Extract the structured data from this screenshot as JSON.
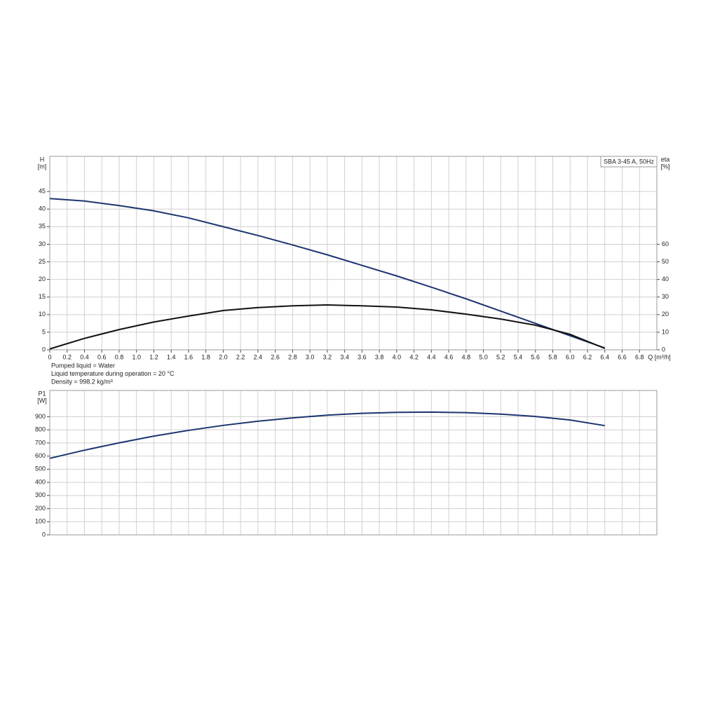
{
  "chart_data": [
    {
      "type": "line",
      "title": "SBA 3-45 A, 50Hz",
      "ylabel": "H",
      "yunit": "[m]",
      "y2label": "eta",
      "y2unit": "[%]",
      "xlabel": "Q [m³/h]",
      "notes": [
        "Pumped liquid = Water",
        "Liquid temperature during operation = 20 °C",
        "Density = 998.2 kg/m³"
      ],
      "x": [
        0,
        0.4,
        0.8,
        1.2,
        1.6,
        2.0,
        2.4,
        2.8,
        3.2,
        3.6,
        4.0,
        4.4,
        4.8,
        5.2,
        5.6,
        6.0,
        6.4
      ],
      "series": [
        {
          "color": "#1c3570",
          "axis": "y",
          "values": [
            43,
            42.3,
            41,
            39.5,
            37.5,
            35,
            32.5,
            29.8,
            27,
            24,
            21,
            17.8,
            14.5,
            11,
            7.5,
            4,
            0.5
          ]
        },
        {
          "color": "#111111",
          "axis": "y2",
          "values": [
            0.5,
            6.5,
            11.5,
            15.8,
            19.2,
            22.3,
            24,
            25,
            25.5,
            25,
            24.3,
            22.7,
            20.3,
            17.5,
            14,
            8.8,
            0.8
          ]
        }
      ],
      "xlim": [
        0,
        7.0
      ],
      "xticks": [
        0,
        0.2,
        0.4,
        0.6,
        0.8,
        {
          "value": 1,
          "label": "1.0"
        },
        1.2,
        1.4,
        1.6,
        1.8,
        {
          "value": 2,
          "label": "2.0"
        },
        2.2,
        2.4,
        2.6,
        2.8,
        {
          "value": 3,
          "label": "3.0"
        },
        3.2,
        3.4,
        3.6,
        3.8,
        {
          "value": 4,
          "label": "4.0"
        },
        4.2,
        4.4,
        4.6,
        4.8,
        {
          "value": 5,
          "label": "5.0"
        },
        5.2,
        5.4,
        5.6,
        5.8,
        {
          "value": 6,
          "label": "6.0"
        },
        6.2,
        6.4,
        6.6,
        6.8
      ],
      "ylim": [
        0,
        55
      ],
      "yticks": [
        0,
        5,
        10,
        15,
        20,
        25,
        30,
        35,
        40,
        45
      ],
      "y2lim": [
        0,
        110
      ],
      "y2ticks": [
        0,
        10,
        20,
        30,
        40,
        50,
        60
      ],
      "grid": true
    },
    {
      "type": "line",
      "ylabel": "P1",
      "yunit": "[W]",
      "x": [
        0,
        0.4,
        0.8,
        1.2,
        1.6,
        2.0,
        2.4,
        2.8,
        3.2,
        3.6,
        4.0,
        4.4,
        4.8,
        5.2,
        5.6,
        6.0,
        6.4
      ],
      "series": [
        {
          "color": "#1c3570",
          "axis": "y",
          "values": [
            583,
            645,
            701,
            752,
            796,
            834,
            866,
            891,
            912,
            926,
            933,
            935,
            931,
            920,
            902,
            875,
            832
          ]
        }
      ],
      "xlim": [
        0,
        7.0
      ],
      "ylim": [
        0,
        1100
      ],
      "yticks": [
        0,
        100,
        200,
        300,
        400,
        500,
        600,
        700,
        800,
        900
      ],
      "grid": true
    }
  ]
}
